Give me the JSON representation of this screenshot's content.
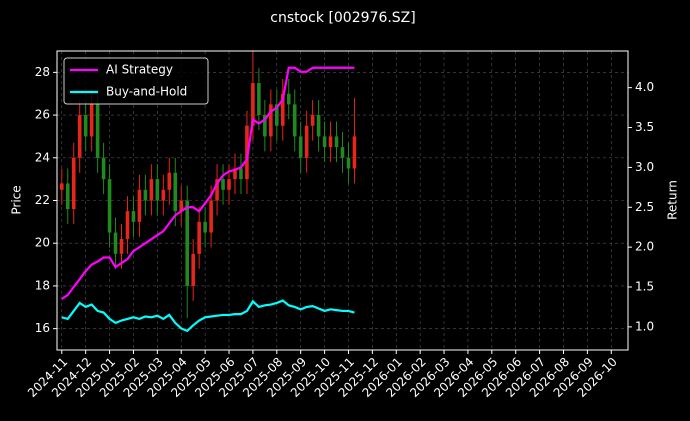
{
  "chart_data": {
    "type": "candlestick",
    "title": "cnstock [002976.SZ]",
    "ylabel": "Price",
    "y2label": "Return",
    "x": [
      0,
      0.25,
      0.5,
      0.75,
      1,
      1.25,
      1.5,
      1.75,
      2,
      2.25,
      2.5,
      2.75,
      3,
      3.25,
      3.5,
      3.75,
      4,
      4.25,
      4.5,
      4.75,
      5,
      5.25,
      5.5,
      5.75,
      6,
      6.25,
      6.5,
      6.75,
      7,
      7.25,
      7.5,
      7.75,
      8,
      8.25,
      8.5,
      8.75,
      9,
      9.25,
      9.5,
      9.75,
      10,
      10.25,
      10.5,
      10.75,
      11,
      11.25,
      11.5,
      11.75,
      12,
      12.25
    ],
    "open": [
      22.5,
      22.8,
      21.6,
      24.0,
      26.0,
      25.0,
      26.5,
      24.0,
      23.0,
      20.5,
      19.5,
      20.2,
      21.5,
      21.0,
      22.5,
      22.0,
      23.0,
      22.0,
      22.5,
      23.3,
      21.5,
      22.0,
      18.0,
      19.5,
      21.0,
      20.5,
      22.0,
      23.0,
      22.5,
      23.0,
      23.5,
      23.0,
      25.5,
      27.5,
      26.0,
      25.0,
      26.5,
      25.5,
      27.0,
      26.5,
      25.0,
      24.0,
      25.5,
      26.0,
      25.0,
      24.5,
      25.0,
      24.5,
      24.0,
      23.5
    ],
    "high": [
      23.5,
      23.5,
      24.7,
      26.7,
      26.7,
      27.2,
      27.2,
      24.7,
      23.7,
      21.2,
      20.9,
      22.2,
      22.2,
      23.2,
      23.2,
      23.7,
      23.7,
      23.2,
      24.0,
      24.0,
      22.7,
      22.7,
      20.2,
      21.7,
      21.7,
      22.7,
      23.7,
      23.7,
      23.7,
      24.2,
      24.2,
      26.2,
      29.0,
      28.2,
      26.7,
      27.2,
      27.2,
      27.7,
      27.7,
      27.2,
      25.7,
      26.2,
      26.7,
      26.7,
      25.7,
      25.7,
      25.7,
      25.2,
      24.7,
      26.8
    ],
    "low": [
      21.8,
      20.9,
      20.9,
      23.3,
      24.3,
      24.3,
      23.3,
      22.3,
      19.8,
      18.8,
      18.8,
      19.5,
      20.3,
      20.3,
      21.3,
      21.3,
      21.3,
      21.3,
      21.8,
      20.8,
      20.8,
      16.5,
      17.3,
      18.8,
      19.8,
      19.8,
      21.3,
      21.8,
      21.8,
      22.3,
      22.3,
      22.3,
      24.8,
      25.3,
      24.3,
      24.3,
      24.8,
      24.8,
      25.8,
      24.3,
      23.3,
      23.3,
      24.8,
      24.3,
      23.8,
      23.8,
      23.8,
      23.3,
      22.8,
      22.8
    ],
    "close": [
      22.8,
      21.6,
      24.0,
      26.0,
      25.0,
      26.5,
      24.0,
      23.0,
      20.5,
      19.5,
      20.2,
      21.5,
      21.0,
      22.5,
      22.0,
      23.0,
      22.0,
      22.5,
      23.3,
      21.5,
      22.0,
      18.0,
      19.5,
      21.0,
      20.5,
      22.0,
      23.0,
      22.5,
      23.0,
      23.5,
      23.0,
      25.5,
      27.5,
      26.0,
      25.0,
      26.5,
      25.5,
      27.0,
      26.5,
      25.0,
      24.0,
      25.5,
      26.0,
      25.0,
      24.5,
      25.0,
      24.5,
      24.0,
      23.5,
      25.0
    ],
    "up_color": "#e8251a",
    "down_color": "#1f8a1f",
    "series": [
      {
        "name": "AI Strategy",
        "color": "#ff00ff",
        "axis": "y2",
        "values": [
          1.35,
          1.4,
          1.5,
          1.6,
          1.7,
          1.78,
          1.82,
          1.87,
          1.87,
          1.75,
          1.8,
          1.85,
          1.95,
          2.0,
          2.05,
          2.1,
          2.15,
          2.2,
          2.3,
          2.4,
          2.45,
          2.5,
          2.5,
          2.45,
          2.55,
          2.65,
          2.8,
          2.9,
          2.95,
          2.97,
          3.0,
          3.1,
          3.6,
          3.55,
          3.6,
          3.7,
          3.75,
          3.85,
          4.25,
          4.25,
          4.2,
          4.2,
          4.25,
          4.25,
          4.25,
          4.25,
          4.25,
          4.25,
          4.25,
          4.25
        ]
      },
      {
        "name": "Buy-and-Hold",
        "color": "#00ffff",
        "axis": "y2",
        "values": [
          1.12,
          1.1,
          1.2,
          1.3,
          1.25,
          1.28,
          1.2,
          1.18,
          1.1,
          1.05,
          1.08,
          1.1,
          1.12,
          1.1,
          1.13,
          1.12,
          1.14,
          1.1,
          1.15,
          1.05,
          0.98,
          0.95,
          1.02,
          1.08,
          1.12,
          1.13,
          1.14,
          1.15,
          1.15,
          1.16,
          1.16,
          1.2,
          1.32,
          1.25,
          1.27,
          1.28,
          1.3,
          1.33,
          1.27,
          1.25,
          1.22,
          1.25,
          1.26,
          1.23,
          1.2,
          1.22,
          1.21,
          1.2,
          1.2,
          1.18
        ]
      }
    ],
    "xlim": [
      -0.2,
      23.7
    ],
    "xticks": [
      {
        "value": 0,
        "label": "2024-11"
      },
      {
        "value": 1,
        "label": "2024-12"
      },
      {
        "value": 2,
        "label": "2025-01"
      },
      {
        "value": 3,
        "label": "2025-02"
      },
      {
        "value": 4,
        "label": "2025-03"
      },
      {
        "value": 5,
        "label": "2025-04"
      },
      {
        "value": 6,
        "label": "2025-05"
      },
      {
        "value": 7,
        "label": "2025-06"
      },
      {
        "value": 8,
        "label": "2025-07"
      },
      {
        "value": 9,
        "label": "2025-08"
      },
      {
        "value": 10,
        "label": "2025-09"
      },
      {
        "value": 11,
        "label": "2025-10"
      },
      {
        "value": 12,
        "label": "2025-11"
      },
      {
        "value": 13,
        "label": "2025-12"
      },
      {
        "value": 14,
        "label": "2026-01"
      },
      {
        "value": 15,
        "label": "2026-02"
      },
      {
        "value": 16,
        "label": "2026-03"
      },
      {
        "value": 17,
        "label": "2026-04"
      },
      {
        "value": 18,
        "label": "2026-05"
      },
      {
        "value": 19,
        "label": "2026-06"
      },
      {
        "value": 20,
        "label": "2026-07"
      },
      {
        "value": 21,
        "label": "2026-08"
      },
      {
        "value": 22,
        "label": "2026-09"
      },
      {
        "value": 23,
        "label": "2026-10"
      }
    ],
    "ylim": [
      15.0,
      29.0
    ],
    "yticks": [
      16,
      18,
      20,
      22,
      24,
      26,
      28
    ],
    "y2lim": [
      0.71,
      4.46
    ],
    "y2ticks": [
      {
        "value": 1.0,
        "label": "1.0"
      },
      {
        "value": 1.5,
        "label": "1.5"
      },
      {
        "value": 2.0,
        "label": "2.0"
      },
      {
        "value": 2.5,
        "label": "2.5"
      },
      {
        "value": 3.0,
        "label": "3.0"
      },
      {
        "value": 3.5,
        "label": "3.5"
      },
      {
        "value": 4.0,
        "label": "4.0"
      }
    ],
    "grid": true,
    "legend": "upper left"
  }
}
